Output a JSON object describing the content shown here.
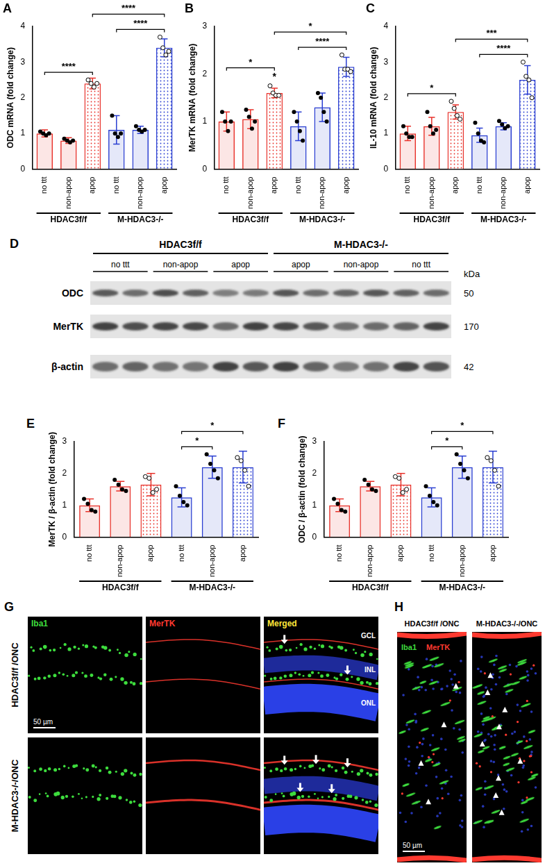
{
  "chart_data": [
    {
      "panel": "A",
      "type": "bar",
      "y_label": "ODC mRNA (fold change)",
      "categories": [
        "no ttt",
        "non-apop",
        "apop",
        "no ttt",
        "non-apop",
        "apop"
      ],
      "groups": [
        {
          "label": "HDAC3f/f",
          "from": 0,
          "to": 2
        },
        {
          "label": "M-HDAC3-/-",
          "from": 3,
          "to": 5
        }
      ],
      "values": [
        1.0,
        0.8,
        2.4,
        1.1,
        1.1,
        3.4
      ],
      "errors": [
        0.1,
        0.08,
        0.15,
        0.4,
        0.1,
        0.25
      ],
      "points": [
        [
          1.05,
          1.0,
          0.95,
          1.0
        ],
        [
          0.85,
          0.8,
          0.75,
          0.8
        ],
        [
          2.5,
          2.4,
          2.3,
          2.4
        ],
        [
          1.5,
          1.0,
          0.9,
          1.0
        ],
        [
          1.2,
          1.1,
          1.05,
          1.1
        ],
        [
          3.7,
          3.4,
          3.2,
          3.3
        ]
      ],
      "colors": [
        "#e8322b",
        "#e8322b",
        "#e8322b",
        "#2b3fd1",
        "#2b3fd1",
        "#2b3fd1"
      ],
      "ylim": [
        0,
        4
      ],
      "yticks": [
        0,
        1,
        2,
        3,
        4
      ],
      "grid": false,
      "significance": [
        {
          "from": 0,
          "to": 2,
          "label": "****"
        },
        {
          "from": 3,
          "to": 5,
          "label": "****"
        },
        {
          "from": 2,
          "to": 5,
          "label": "****"
        }
      ],
      "marks": []
    },
    {
      "panel": "B",
      "type": "bar",
      "y_label": "MerTK mRNA (fold change)",
      "categories": [
        "no ttt",
        "non-apop",
        "apop",
        "no ttt",
        "non-apop",
        "apop"
      ],
      "groups": [
        {
          "label": "HDAC3f/f",
          "from": 0,
          "to": 2
        },
        {
          "label": "M-HDAC3-/-",
          "from": 3,
          "to": 5
        }
      ],
      "values": [
        1.0,
        1.05,
        1.6,
        0.9,
        1.3,
        2.15
      ],
      "errors": [
        0.2,
        0.2,
        0.1,
        0.3,
        0.3,
        0.2
      ],
      "points": [
        [
          1.2,
          1.0,
          0.8,
          1.0
        ],
        [
          1.25,
          1.1,
          0.85,
          1.0
        ],
        [
          1.75,
          1.6,
          1.55,
          1.55
        ],
        [
          1.2,
          1.0,
          0.8,
          0.6
        ],
        [
          1.6,
          1.5,
          1.2,
          1.0
        ],
        [
          2.4,
          2.1,
          2.1,
          2.05
        ]
      ],
      "colors": [
        "#e8322b",
        "#e8322b",
        "#e8322b",
        "#2b3fd1",
        "#2b3fd1",
        "#2b3fd1"
      ],
      "ylim": [
        0,
        3
      ],
      "yticks": [
        0,
        1,
        2,
        3
      ],
      "grid": false,
      "significance": [
        {
          "from": 0,
          "to": 2,
          "label": "*"
        },
        {
          "from": 3,
          "to": 5,
          "label": "****"
        },
        {
          "from": 2,
          "to": 5,
          "label": "*"
        }
      ],
      "marks": [
        {
          "at": 2,
          "label": "*"
        }
      ]
    },
    {
      "panel": "C",
      "type": "bar",
      "y_label": "IL-10 mRNA (fold change)",
      "categories": [
        "no ttt",
        "non-apop",
        "apop",
        "no ttt",
        "non-apop",
        "apop"
      ],
      "groups": [
        {
          "label": "HDAC3f/f",
          "from": 0,
          "to": 2
        },
        {
          "label": "M-HDAC3-/-",
          "from": 3,
          "to": 5
        }
      ],
      "values": [
        1.0,
        1.2,
        1.6,
        0.95,
        1.2,
        2.5
      ],
      "errors": [
        0.2,
        0.25,
        0.2,
        0.2,
        0.1,
        0.4
      ],
      "points": [
        [
          1.2,
          1.0,
          0.9,
          0.9
        ],
        [
          1.6,
          1.2,
          1.0,
          1.1
        ],
        [
          1.9,
          1.7,
          1.5,
          1.4
        ],
        [
          1.3,
          1.0,
          0.8,
          0.75
        ],
        [
          1.35,
          1.25,
          1.15,
          1.2
        ],
        [
          3.0,
          2.6,
          2.5,
          2.0
        ]
      ],
      "colors": [
        "#e8322b",
        "#e8322b",
        "#e8322b",
        "#2b3fd1",
        "#2b3fd1",
        "#2b3fd1"
      ],
      "ylim": [
        0,
        4
      ],
      "yticks": [
        0,
        1,
        2,
        3,
        4
      ],
      "grid": false,
      "significance": [
        {
          "from": 0,
          "to": 2,
          "label": "*"
        },
        {
          "from": 3,
          "to": 5,
          "label": "****"
        },
        {
          "from": 2,
          "to": 5,
          "label": "***"
        }
      ],
      "marks": []
    },
    {
      "panel": "E",
      "type": "bar",
      "y_label": "MerTK / β-actin (fold change)",
      "categories": [
        "no ttt",
        "non-apop",
        "apop",
        "no ttt",
        "non-apop",
        "apop"
      ],
      "groups": [
        {
          "label": "HDAC3f/f",
          "from": 0,
          "to": 2
        },
        {
          "label": "M-HDAC3-/-",
          "from": 3,
          "to": 5
        }
      ],
      "values": [
        1.0,
        1.6,
        1.65,
        1.25,
        2.2,
        2.2
      ],
      "errors": [
        0.2,
        0.15,
        0.35,
        0.3,
        0.35,
        0.5
      ],
      "points": [
        [
          1.2,
          1.05,
          0.85,
          0.8
        ],
        [
          1.8,
          1.65,
          1.5,
          1.45
        ],
        [
          1.9,
          1.85,
          1.4,
          1.5
        ],
        [
          1.6,
          1.3,
          1.1,
          1.0
        ],
        [
          2.6,
          2.3,
          2.1,
          1.85
        ],
        [
          2.5,
          2.4,
          2.1,
          1.6
        ]
      ],
      "colors": [
        "#e8322b",
        "#e8322b",
        "#e8322b",
        "#2b3fd1",
        "#2b3fd1",
        "#2b3fd1"
      ],
      "ylim": [
        0,
        3
      ],
      "yticks": [
        0,
        1,
        2,
        3
      ],
      "grid": false,
      "significance": [
        {
          "from": 3,
          "to": 4,
          "label": "*"
        },
        {
          "from": 3,
          "to": 5,
          "label": "*"
        }
      ],
      "marks": []
    },
    {
      "panel": "F",
      "type": "bar",
      "y_label": "ODC / β-actin (fold change)",
      "categories": [
        "no ttt",
        "non-apop",
        "apop",
        "no ttt",
        "non-apop",
        "apop"
      ],
      "groups": [
        {
          "label": "HDAC3f/f",
          "from": 0,
          "to": 2
        },
        {
          "label": "M-HDAC3-/-",
          "from": 3,
          "to": 5
        }
      ],
      "values": [
        1.0,
        1.6,
        1.65,
        1.25,
        2.2,
        2.2
      ],
      "errors": [
        0.2,
        0.15,
        0.35,
        0.3,
        0.35,
        0.5
      ],
      "points": [
        [
          1.2,
          1.05,
          0.85,
          0.8
        ],
        [
          1.8,
          1.65,
          1.5,
          1.45
        ],
        [
          1.9,
          1.85,
          1.4,
          1.5
        ],
        [
          1.6,
          1.3,
          1.1,
          1.0
        ],
        [
          2.6,
          2.3,
          2.1,
          1.85
        ],
        [
          2.5,
          2.4,
          2.1,
          1.6
        ]
      ],
      "colors": [
        "#e8322b",
        "#e8322b",
        "#e8322b",
        "#2b3fd1",
        "#2b3fd1",
        "#2b3fd1"
      ],
      "ylim": [
        0,
        3
      ],
      "yticks": [
        0,
        1,
        2,
        3
      ],
      "grid": false,
      "significance": [
        {
          "from": 3,
          "to": 4,
          "label": "*"
        },
        {
          "from": 3,
          "to": 5,
          "label": "*"
        }
      ],
      "marks": []
    }
  ],
  "blot": {
    "panel": "D",
    "groups": [
      {
        "label": "HDAC3f/f",
        "lanes": [
          "no ttt",
          "non-apop",
          "apop"
        ]
      },
      {
        "label": "M-HDAC3-/-",
        "lanes": [
          "apop",
          "non-apop",
          "no ttt"
        ]
      }
    ],
    "rows": [
      {
        "label": "ODC",
        "kDa": 50
      },
      {
        "label": "MerTK",
        "kDa": 170
      },
      {
        "label": "β-actin",
        "kDa": 42
      }
    ],
    "unit": "kDa"
  },
  "micrographs": {
    "G": {
      "panel": "G",
      "rows": [
        "HDAC3f/f /ONC",
        "M-HDAC3-/-/ONC"
      ],
      "columns": [
        {
          "label": "Iba1",
          "color": "#3ddc3d"
        },
        {
          "label": "MerTK",
          "color": "#ff3a30"
        },
        {
          "label": "Merged",
          "color": "#ffe83a"
        }
      ],
      "layers": [
        "GCL",
        "INL",
        "ONL"
      ],
      "scale_bar": "50 µm",
      "arrows": [
        2,
        5
      ]
    },
    "H": {
      "panel": "H",
      "images": [
        "HDAC3f/f /ONC",
        "M-HDAC3-/-/ONC"
      ],
      "stains": [
        {
          "label": "Iba1",
          "color": "#3ddc3d"
        },
        {
          "label": "MerTK",
          "color": "#ff3a30"
        }
      ],
      "scale_bar": "50 µm",
      "arrowheads": [
        4,
        9
      ]
    }
  }
}
